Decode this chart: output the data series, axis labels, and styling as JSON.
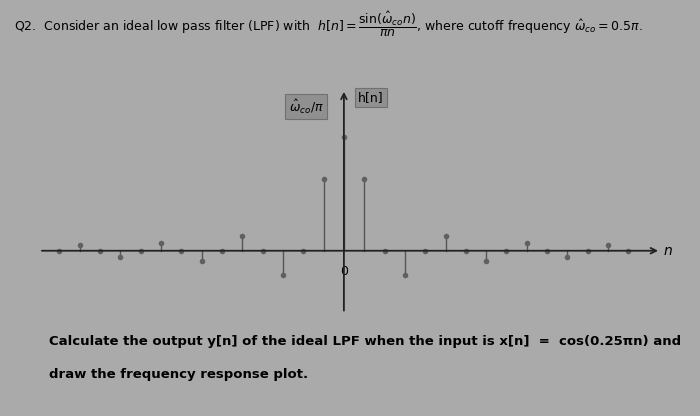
{
  "omega_co": 0.5,
  "n_range": [
    -14,
    14
  ],
  "background_color": "#aaaaaa",
  "stem_color": "#555555",
  "marker_color": "#606060",
  "axis_color": "#222222",
  "title": "Q2.  Consider an ideal low pass filter (LPF) with  $h[n] = \\dfrac{\\sin(\\hat{\\omega}_{co}n)}{\\pi n}$, where cutoff frequency $\\hat{\\omega}_{co} = 0.5\\pi$.",
  "bottom_text_line1": "Calculate the output y[n] of the ideal LPF when the input is x[n]  =  cos(0.25πn) and",
  "bottom_text_line2": "draw the frequency response plot.",
  "label_omega": "$\\hat{\\omega}_{co} / \\pi$",
  "label_hn": "h[n]",
  "label_n": "n",
  "label_zero": "0",
  "figsize": [
    7.0,
    4.16
  ],
  "dpi": 100
}
